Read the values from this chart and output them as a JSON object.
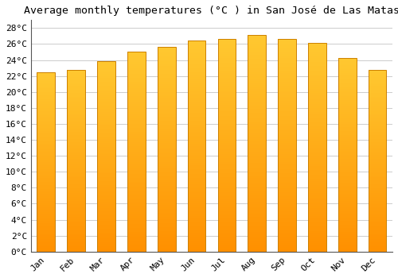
{
  "title": "Average monthly temperatures (°C ) in San José de Las Matas",
  "months": [
    "Jan",
    "Feb",
    "Mar",
    "Apr",
    "May",
    "Jun",
    "Jul",
    "Aug",
    "Sep",
    "Oct",
    "Nov",
    "Dec"
  ],
  "values": [
    22.5,
    22.8,
    23.9,
    25.0,
    25.6,
    26.4,
    26.6,
    27.1,
    26.6,
    26.1,
    24.3,
    22.8
  ],
  "bar_color_top": "#FFC830",
  "bar_color_bottom": "#FF9000",
  "bar_edge_color": "#CC8000",
  "background_color": "#ffffff",
  "grid_color": "#cccccc",
  "ylim_max": 29,
  "ytick_step": 2,
  "title_fontsize": 9.5,
  "tick_fontsize": 8,
  "bar_width": 0.6
}
